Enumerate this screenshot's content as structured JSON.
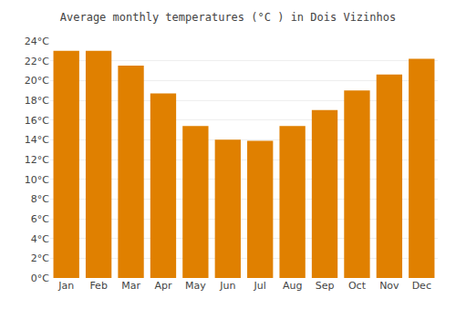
{
  "chart_data": {
    "type": "bar",
    "title": "Average monthly temperatures (°C ) in Dois Vizinhos",
    "categories": [
      "Jan",
      "Feb",
      "Mar",
      "Apr",
      "May",
      "Jun",
      "Jul",
      "Aug",
      "Sep",
      "Oct",
      "Nov",
      "Dec"
    ],
    "values": [
      23.0,
      23.0,
      21.5,
      18.7,
      15.4,
      14.0,
      13.9,
      15.4,
      17.0,
      19.0,
      20.6,
      22.2
    ],
    "color": "#E08000",
    "ylim": [
      0,
      24
    ],
    "yticks": [
      {
        "value": 0,
        "label": "0°C"
      },
      {
        "value": 2,
        "label": "2°C"
      },
      {
        "value": 4,
        "label": "4°C"
      },
      {
        "value": 6,
        "label": "6°C"
      },
      {
        "value": 8,
        "label": "8°C"
      },
      {
        "value": 10,
        "label": "10°C"
      },
      {
        "value": 12,
        "label": "12°C"
      },
      {
        "value": 14,
        "label": "14°C"
      },
      {
        "value": 16,
        "label": "16°C"
      },
      {
        "value": 18,
        "label": "18°C"
      },
      {
        "value": 20,
        "label": "20°C"
      },
      {
        "value": 22,
        "label": "22°C"
      },
      {
        "value": 24,
        "label": "24°C"
      }
    ],
    "grid": true
  }
}
